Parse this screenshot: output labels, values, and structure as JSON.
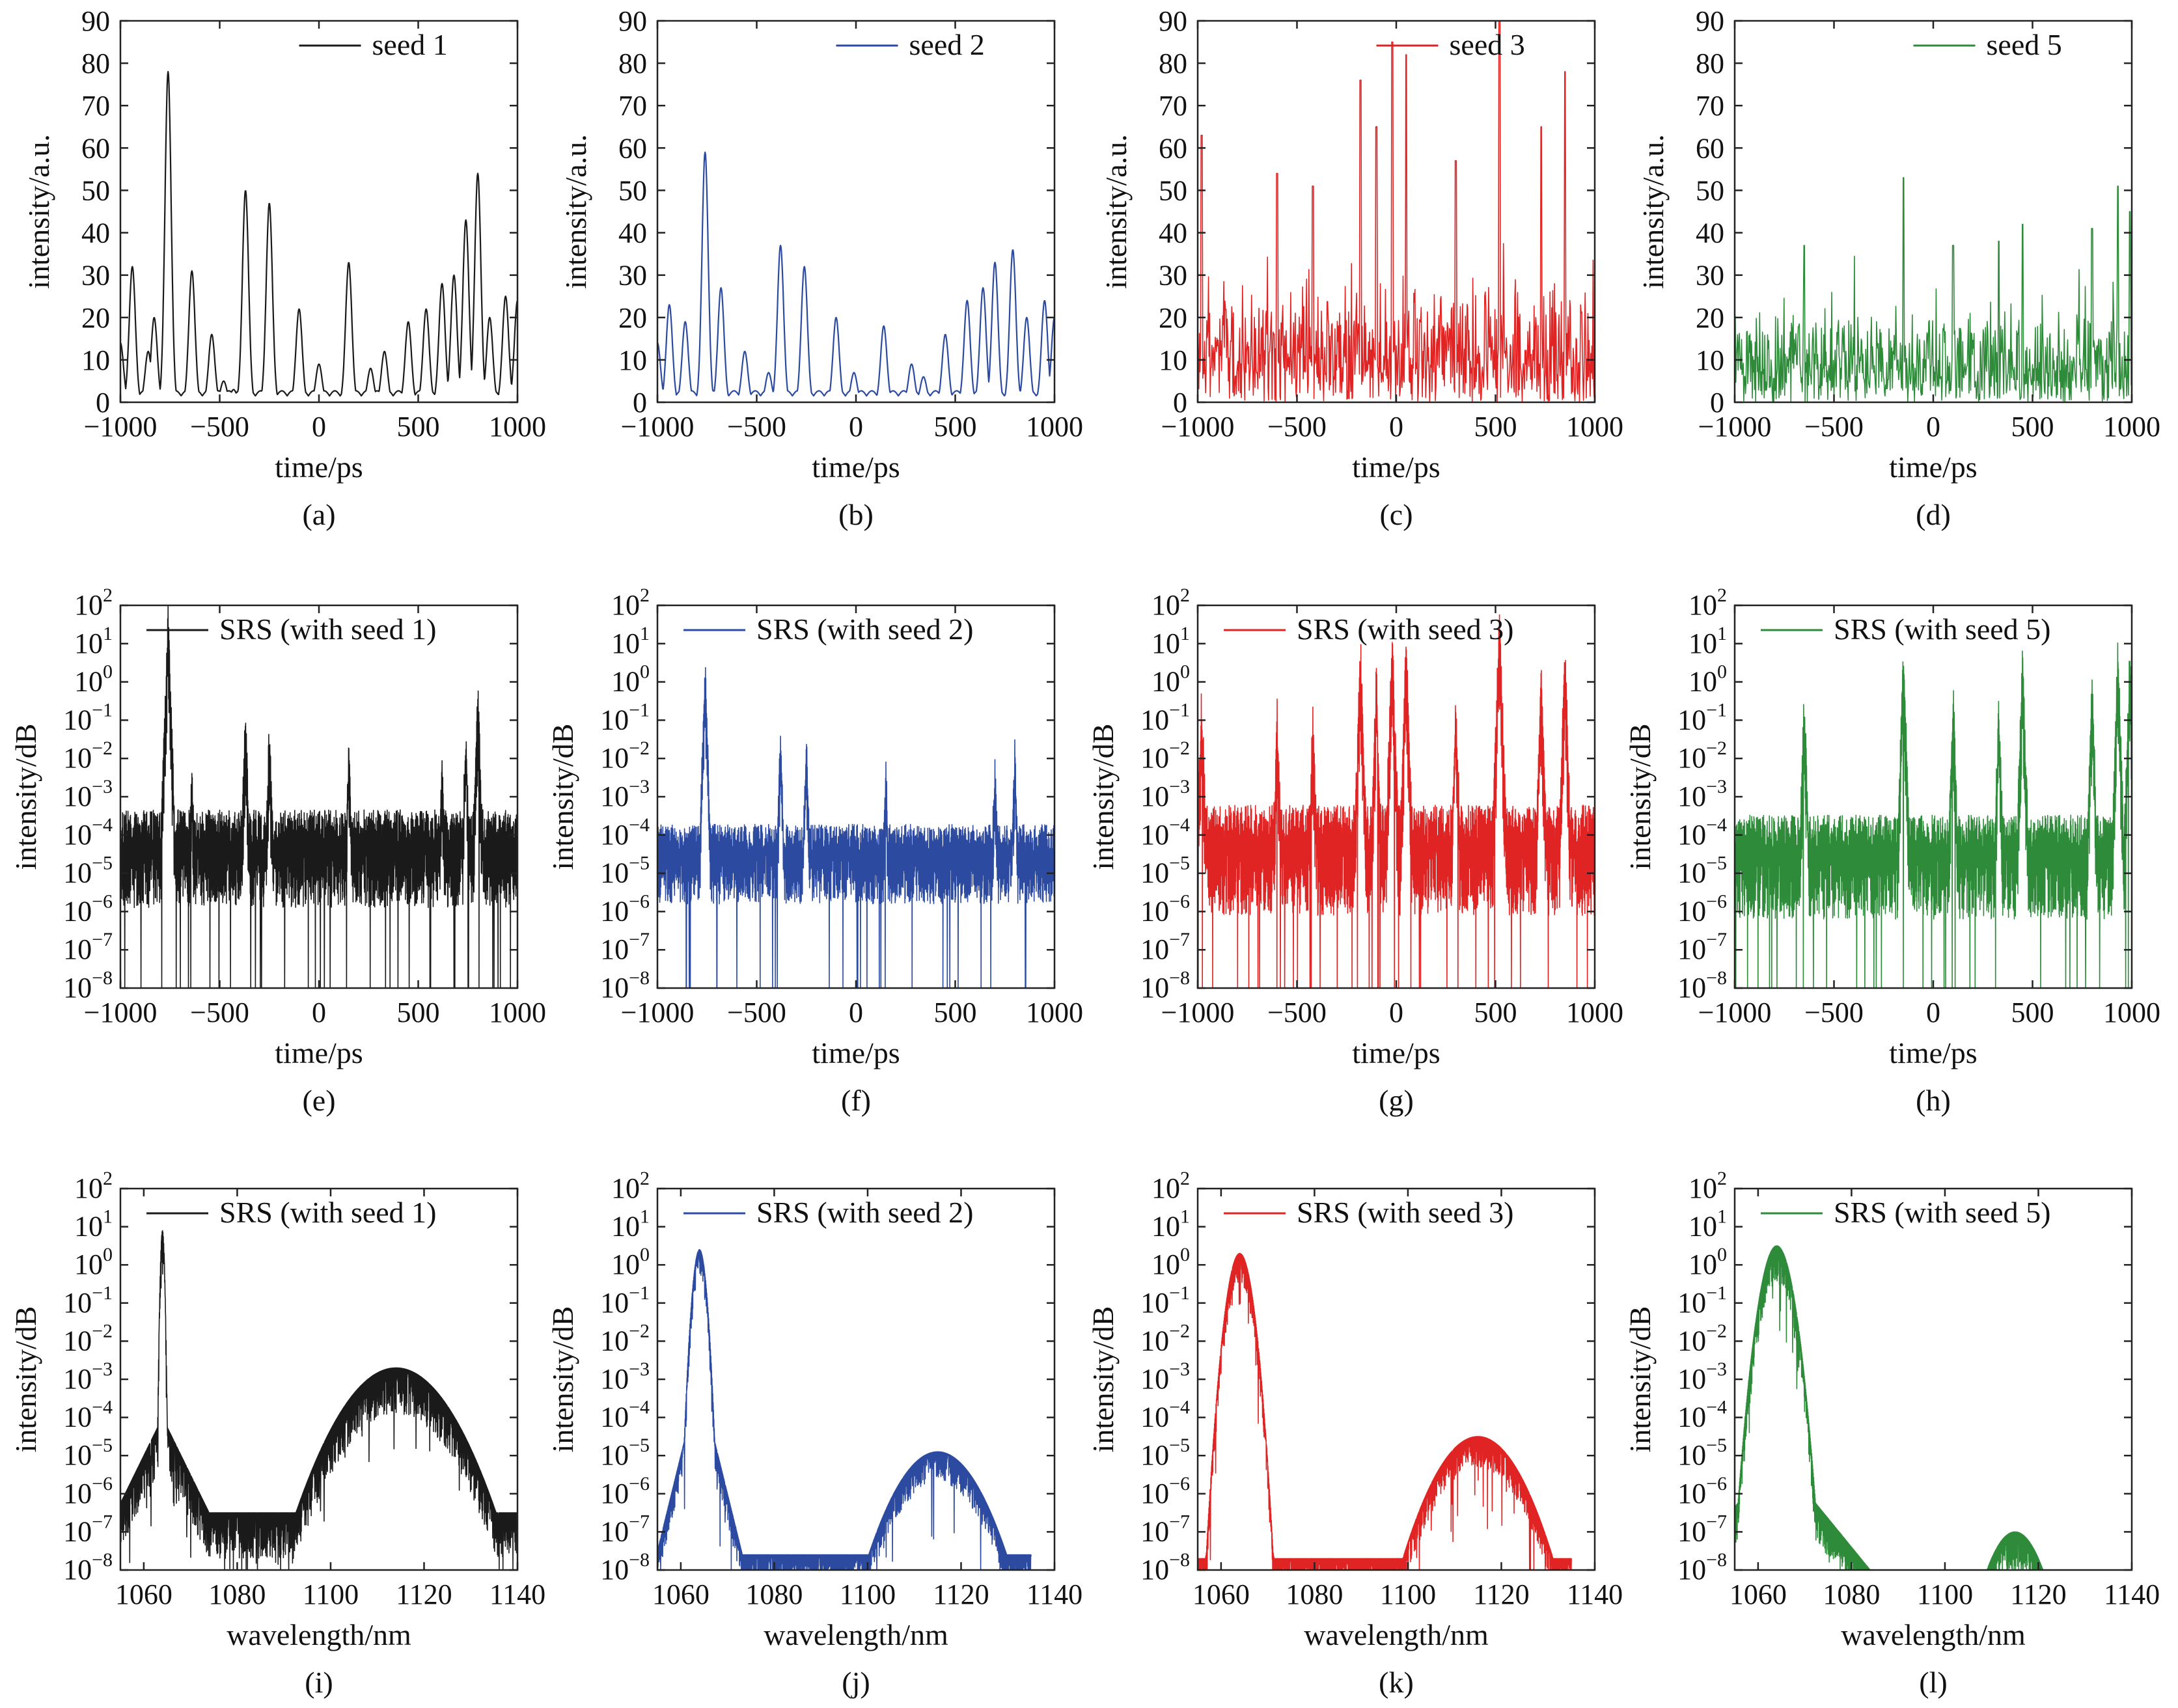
{
  "colors": {
    "seed1": "#1a1a1a",
    "seed2": "#2b4aa0",
    "seed3": "#e02424",
    "seed5": "#2e8b3a"
  },
  "chart_data": [
    {
      "id": "a",
      "caption": "(a)",
      "type": "line",
      "scale": "linear",
      "color_key": "seed1",
      "legend": "seed 1",
      "xlabel": "time/ps",
      "ylabel": "intensity/a.u.",
      "xlim": [
        -1000,
        1000
      ],
      "ylim": [
        0,
        90
      ],
      "xticks": [
        -1000,
        -500,
        0,
        500,
        1000
      ],
      "xtick_labels": [
        "−1000",
        "−500",
        "0",
        "500",
        "1000"
      ],
      "yticks": [
        0,
        10,
        20,
        30,
        40,
        50,
        60,
        70,
        80,
        90
      ],
      "ytick_labels": [
        "0",
        "10",
        "20",
        "30",
        "40",
        "50",
        "60",
        "70",
        "80",
        "90"
      ],
      "peaks": [
        [
          -1000,
          14
        ],
        [
          -940,
          32
        ],
        [
          -860,
          12
        ],
        [
          -830,
          20
        ],
        [
          -760,
          78
        ],
        [
          -640,
          31
        ],
        [
          -540,
          16
        ],
        [
          -480,
          5
        ],
        [
          -430,
          3
        ],
        [
          -370,
          50
        ],
        [
          -250,
          47
        ],
        [
          -100,
          22
        ],
        [
          0,
          9
        ],
        [
          150,
          33
        ],
        [
          260,
          8
        ],
        [
          330,
          12
        ],
        [
          450,
          19
        ],
        [
          540,
          22
        ],
        [
          620,
          28
        ],
        [
          680,
          30
        ],
        [
          740,
          43
        ],
        [
          800,
          54
        ],
        [
          860,
          20
        ],
        [
          940,
          25
        ],
        [
          1000,
          24
        ]
      ],
      "style": "smooth"
    },
    {
      "id": "b",
      "caption": "(b)",
      "type": "line",
      "scale": "linear",
      "color_key": "seed2",
      "legend": "seed 2",
      "xlabel": "time/ps",
      "ylabel": "intensity/a.u.",
      "xlim": [
        -1000,
        1000
      ],
      "ylim": [
        0,
        90
      ],
      "xticks": [
        -1000,
        -500,
        0,
        500,
        1000
      ],
      "xtick_labels": [
        "−1000",
        "−500",
        "0",
        "500",
        "1000"
      ],
      "yticks": [
        0,
        10,
        20,
        30,
        40,
        50,
        60,
        70,
        80,
        90
      ],
      "ytick_labels": [
        "0",
        "10",
        "20",
        "30",
        "40",
        "50",
        "60",
        "70",
        "80",
        "90"
      ],
      "peaks": [
        [
          -1000,
          14
        ],
        [
          -940,
          23
        ],
        [
          -860,
          19
        ],
        [
          -760,
          59
        ],
        [
          -680,
          27
        ],
        [
          -560,
          12
        ],
        [
          -440,
          7
        ],
        [
          -380,
          37
        ],
        [
          -260,
          32
        ],
        [
          -100,
          20
        ],
        [
          -10,
          7
        ],
        [
          140,
          18
        ],
        [
          280,
          9
        ],
        [
          340,
          6
        ],
        [
          450,
          16
        ],
        [
          560,
          24
        ],
        [
          640,
          27
        ],
        [
          700,
          33
        ],
        [
          790,
          36
        ],
        [
          860,
          20
        ],
        [
          950,
          24
        ],
        [
          1000,
          20
        ]
      ],
      "style": "smooth"
    },
    {
      "id": "c",
      "caption": "(c)",
      "type": "line",
      "scale": "linear",
      "color_key": "seed3",
      "legend": "seed 3",
      "xlabel": "time/ps",
      "ylabel": "intensity/a.u.",
      "xlim": [
        -1000,
        1000
      ],
      "ylim": [
        0,
        90
      ],
      "xticks": [
        -1000,
        -500,
        0,
        500,
        1000
      ],
      "xtick_labels": [
        "−1000",
        "−500",
        "0",
        "500",
        "1000"
      ],
      "yticks": [
        0,
        10,
        20,
        30,
        40,
        50,
        60,
        70,
        80,
        90
      ],
      "ytick_labels": [
        "0",
        "10",
        "20",
        "30",
        "40",
        "50",
        "60",
        "70",
        "80",
        "90"
      ],
      "peaks": [
        [
          -980,
          63
        ],
        [
          -600,
          54
        ],
        [
          -420,
          51
        ],
        [
          -180,
          76
        ],
        [
          -100,
          65
        ],
        [
          -20,
          85
        ],
        [
          50,
          82
        ],
        [
          300,
          57
        ],
        [
          520,
          90
        ],
        [
          730,
          65
        ],
        [
          850,
          78
        ]
      ],
      "style": "noisy",
      "noise_level": 18
    },
    {
      "id": "d",
      "caption": "(d)",
      "type": "line",
      "scale": "linear",
      "color_key": "seed5",
      "legend": "seed 5",
      "xlabel": "time/ps",
      "ylabel": "intensity/a.u.",
      "xlim": [
        -1000,
        1000
      ],
      "ylim": [
        0,
        90
      ],
      "xticks": [
        -1000,
        -500,
        0,
        500,
        1000
      ],
      "xtick_labels": [
        "−1000",
        "−500",
        "0",
        "500",
        "1000"
      ],
      "yticks": [
        0,
        10,
        20,
        30,
        40,
        50,
        60,
        70,
        80,
        90
      ],
      "ytick_labels": [
        "0",
        "10",
        "20",
        "30",
        "40",
        "50",
        "60",
        "70",
        "80",
        "90"
      ],
      "peaks": [
        [
          -650,
          37
        ],
        [
          -150,
          53
        ],
        [
          100,
          37
        ],
        [
          330,
          38
        ],
        [
          450,
          42
        ],
        [
          800,
          41
        ],
        [
          930,
          51
        ],
        [
          990,
          45
        ]
      ],
      "style": "noisy",
      "noise_level": 14
    },
    {
      "id": "e",
      "caption": "(e)",
      "type": "line",
      "scale": "log",
      "color_key": "seed1",
      "legend": "SRS (with seed 1)",
      "xlabel": "time/ps",
      "ylabel": "intensity/dB",
      "xlim": [
        -1000,
        1000
      ],
      "ylim_exp": [
        -8,
        2
      ],
      "xticks": [
        -1000,
        -500,
        0,
        500,
        1000
      ],
      "xtick_labels": [
        "−1000",
        "−500",
        "0",
        "500",
        "1000"
      ],
      "ytick_exps": [
        -8,
        -7,
        -6,
        -5,
        -4,
        -3,
        -2,
        -1,
        0,
        1,
        2
      ],
      "ytick_labels": [
        "10",
        "10",
        "10",
        "10",
        "10",
        "10",
        "10",
        "10",
        "10",
        "10",
        "10"
      ],
      "ytick_sups": [
        "−8",
        "−7",
        "−6",
        "−5",
        "−4",
        "−3",
        "−2",
        "−1",
        "0",
        "1",
        "2"
      ],
      "baseline_exp": -4.3,
      "noise_exp": 1.6,
      "peaks": [
        [
          -760,
          1.3
        ],
        [
          -640,
          -2.8
        ],
        [
          -370,
          -1.4
        ],
        [
          -250,
          -1.8
        ],
        [
          150,
          -2.2
        ],
        [
          620,
          -2.6
        ],
        [
          740,
          -1.8
        ],
        [
          800,
          -0.8
        ]
      ],
      "style": "dense"
    },
    {
      "id": "f",
      "caption": "(f)",
      "type": "line",
      "scale": "log",
      "color_key": "seed2",
      "legend": "SRS (with seed 2)",
      "xlabel": "time/ps",
      "ylabel": "intensity/dB",
      "xlim": [
        -1000,
        1000
      ],
      "ylim_exp": [
        -8,
        2
      ],
      "xticks": [
        -1000,
        -500,
        0,
        500,
        1000
      ],
      "xtick_labels": [
        "−1000",
        "−500",
        "0",
        "500",
        "1000"
      ],
      "ytick_exps": [
        -8,
        -7,
        -6,
        -5,
        -4,
        -3,
        -2,
        -1,
        0,
        1,
        2
      ],
      "ytick_labels": [
        "10",
        "10",
        "10",
        "10",
        "10",
        "10",
        "10",
        "10",
        "10",
        "10",
        "10"
      ],
      "ytick_sups": [
        "−8",
        "−7",
        "−6",
        "−5",
        "−4",
        "−3",
        "−2",
        "−1",
        "0",
        "1",
        "2"
      ],
      "baseline_exp": -4.5,
      "noise_exp": 1.3,
      "peaks": [
        [
          -760,
          0.0
        ],
        [
          -380,
          -1.8
        ],
        [
          -250,
          -2.0
        ],
        [
          150,
          -2.6
        ],
        [
          700,
          -2.5
        ],
        [
          800,
          -2.2
        ]
      ],
      "style": "dense"
    },
    {
      "id": "g",
      "caption": "(g)",
      "type": "line",
      "scale": "log",
      "color_key": "seed3",
      "legend": "SRS (with seed 3)",
      "xlabel": "time/ps",
      "ylabel": "intensity/dB",
      "xlim": [
        -1000,
        1000
      ],
      "ylim_exp": [
        -8,
        2
      ],
      "xticks": [
        -1000,
        -500,
        0,
        500,
        1000
      ],
      "xtick_labels": [
        "−1000",
        "−500",
        "0",
        "500",
        "1000"
      ],
      "ytick_exps": [
        -8,
        -7,
        -6,
        -5,
        -4,
        -3,
        -2,
        -1,
        0,
        1,
        2
      ],
      "ytick_labels": [
        "10",
        "10",
        "10",
        "10",
        "10",
        "10",
        "10",
        "10",
        "10",
        "10",
        "10"
      ],
      "ytick_sups": [
        "−8",
        "−7",
        "−6",
        "−5",
        "−4",
        "−3",
        "−2",
        "−1",
        "0",
        "1",
        "2"
      ],
      "baseline_exp": -4.3,
      "noise_exp": 1.8,
      "peaks": [
        [
          -980,
          -1.0
        ],
        [
          -600,
          -1.5
        ],
        [
          -420,
          -1.6
        ],
        [
          -180,
          0.3
        ],
        [
          -100,
          -0.5
        ],
        [
          -20,
          0.6
        ],
        [
          50,
          0.4
        ],
        [
          300,
          -1.0
        ],
        [
          520,
          1.1
        ],
        [
          730,
          -0.5
        ],
        [
          850,
          0.2
        ]
      ],
      "style": "dense"
    },
    {
      "id": "h",
      "caption": "(h)",
      "type": "line",
      "scale": "log",
      "color_key": "seed5",
      "legend": "SRS (with seed 5)",
      "xlabel": "time/ps",
      "ylabel": "intensity/dB",
      "xlim": [
        -1000,
        1000
      ],
      "ylim_exp": [
        -8,
        2
      ],
      "xticks": [
        -1000,
        -500,
        0,
        500,
        1000
      ],
      "xtick_labels": [
        "−1000",
        "−500",
        "0",
        "500",
        "1000"
      ],
      "ytick_exps": [
        -8,
        -7,
        -6,
        -5,
        -4,
        -3,
        -2,
        -1,
        0,
        1,
        2
      ],
      "ytick_labels": [
        "10",
        "10",
        "10",
        "10",
        "10",
        "10",
        "10",
        "10",
        "10",
        "10",
        "10"
      ],
      "ytick_sups": [
        "−8",
        "−7",
        "−6",
        "−5",
        "−4",
        "−3",
        "−2",
        "−1",
        "0",
        "1",
        "2"
      ],
      "baseline_exp": -4.5,
      "noise_exp": 1.7,
      "peaks": [
        [
          -650,
          -1.0
        ],
        [
          -150,
          0.2
        ],
        [
          100,
          -0.8
        ],
        [
          330,
          -1.2
        ],
        [
          450,
          0.0
        ],
        [
          800,
          -0.6
        ],
        [
          930,
          0.2
        ],
        [
          990,
          0.1
        ]
      ],
      "style": "dense"
    },
    {
      "id": "i",
      "caption": "(i)",
      "type": "line",
      "scale": "log",
      "color_key": "seed1",
      "legend": "SRS (with seed 1)",
      "xlabel": "wavelength/nm",
      "ylabel": "intensity/dB",
      "xlim": [
        1055,
        1140
      ],
      "ylim_exp": [
        -8,
        2
      ],
      "xticks": [
        1060,
        1080,
        1100,
        1120,
        1140
      ],
      "xtick_labels": [
        "1060",
        "1080",
        "1100",
        "1120",
        "1140"
      ],
      "ytick_exps": [
        -8,
        -7,
        -6,
        -5,
        -4,
        -3,
        -2,
        -1,
        0,
        1,
        2
      ],
      "ytick_labels": [
        "10",
        "10",
        "10",
        "10",
        "10",
        "10",
        "10",
        "10",
        "10",
        "10",
        "10"
      ],
      "ytick_sups": [
        "−8",
        "−7",
        "−6",
        "−5",
        "−4",
        "−3",
        "−2",
        "−1",
        "0",
        "1",
        "2"
      ],
      "pump": {
        "center": 1064,
        "peak_exp": 0.9,
        "width": 0.5,
        "wing_exp": -4,
        "wing_width": 6
      },
      "raman": {
        "center": 1114,
        "peak_exp": -2.7,
        "width": 11
      },
      "floor_exp": -6.5,
      "noise_exp": 1.2,
      "xend": 1140,
      "style": "spectrum"
    },
    {
      "id": "j",
      "caption": "(j)",
      "type": "line",
      "scale": "log",
      "color_key": "seed2",
      "legend": "SRS (with seed 2)",
      "xlabel": "wavelength/nm",
      "ylabel": "intensity/dB",
      "xlim": [
        1055,
        1140
      ],
      "ylim_exp": [
        -8,
        2
      ],
      "xticks": [
        1060,
        1080,
        1100,
        1120,
        1140
      ],
      "xtick_labels": [
        "1060",
        "1080",
        "1100",
        "1120",
        "1140"
      ],
      "ytick_exps": [
        -8,
        -7,
        -6,
        -5,
        -4,
        -3,
        -2,
        -1,
        0,
        1,
        2
      ],
      "ytick_labels": [
        "10",
        "10",
        "10",
        "10",
        "10",
        "10",
        "10",
        "10",
        "10",
        "10",
        "10"
      ],
      "ytick_sups": [
        "−8",
        "−7",
        "−6",
        "−5",
        "−4",
        "−3",
        "−2",
        "−1",
        "0",
        "1",
        "2"
      ],
      "pump": {
        "center": 1064,
        "peak_exp": 0.4,
        "width": 1.6,
        "wing_exp": -3,
        "wing_width": 3
      },
      "raman": {
        "center": 1115,
        "peak_exp": -4.9,
        "width": 9
      },
      "floor_exp": -7.6,
      "noise_exp": 0.8,
      "xend": 1135,
      "style": "spectrum"
    },
    {
      "id": "k",
      "caption": "(k)",
      "type": "line",
      "scale": "log",
      "color_key": "seed3",
      "legend": "SRS (with seed 3)",
      "xlabel": "wavelength/nm",
      "ylabel": "intensity/dB",
      "xlim": [
        1055,
        1140
      ],
      "ylim_exp": [
        -8,
        2
      ],
      "xticks": [
        1060,
        1080,
        1100,
        1120,
        1140
      ],
      "xtick_labels": [
        "1060",
        "1080",
        "1100",
        "1120",
        "1140"
      ],
      "ytick_exps": [
        -8,
        -7,
        -6,
        -5,
        -4,
        -3,
        -2,
        -1,
        0,
        1,
        2
      ],
      "ytick_labels": [
        "10",
        "10",
        "10",
        "10",
        "10",
        "10",
        "10",
        "10",
        "10",
        "10",
        "10"
      ],
      "ytick_sups": [
        "−8",
        "−7",
        "−6",
        "−5",
        "−4",
        "−3",
        "−2",
        "−1",
        "0",
        "1",
        "2"
      ],
      "pump": {
        "center": 1064,
        "peak_exp": 0.3,
        "width": 2.8,
        "wing_exp": -4,
        "wing_width": 3
      },
      "raman": {
        "center": 1115,
        "peak_exp": -4.5,
        "width": 9
      },
      "floor_exp": -7.7,
      "noise_exp": 0.8,
      "xend": 1135,
      "style": "spectrum"
    },
    {
      "id": "l",
      "caption": "(l)",
      "type": "line",
      "scale": "log",
      "color_key": "seed5",
      "legend": "SRS (with seed 5)",
      "xlabel": "wavelength/nm",
      "ylabel": "intensity/dB",
      "xlim": [
        1055,
        1140
      ],
      "ylim_exp": [
        -8,
        2
      ],
      "xticks": [
        1060,
        1080,
        1100,
        1120,
        1140
      ],
      "xtick_labels": [
        "1060",
        "1080",
        "1100",
        "1120",
        "1140"
      ],
      "ytick_exps": [
        -8,
        -7,
        -6,
        -5,
        -4,
        -3,
        -2,
        -1,
        0,
        1,
        2
      ],
      "ytick_labels": [
        "10",
        "10",
        "10",
        "10",
        "10",
        "10",
        "10",
        "10",
        "10",
        "10",
        "10"
      ],
      "ytick_sups": [
        "−8",
        "−7",
        "−6",
        "−5",
        "−4",
        "−3",
        "−2",
        "−1",
        "0",
        "1",
        "2"
      ],
      "pump": {
        "center": 1064,
        "peak_exp": 0.5,
        "width": 3.5,
        "wing_exp": -5,
        "wing_width": 10
      },
      "raman": {
        "center": 1115,
        "peak_exp": -7.0,
        "width": 6
      },
      "floor_exp": -8.5,
      "noise_exp": 1.0,
      "xend": 1125,
      "style": "spectrum"
    }
  ]
}
